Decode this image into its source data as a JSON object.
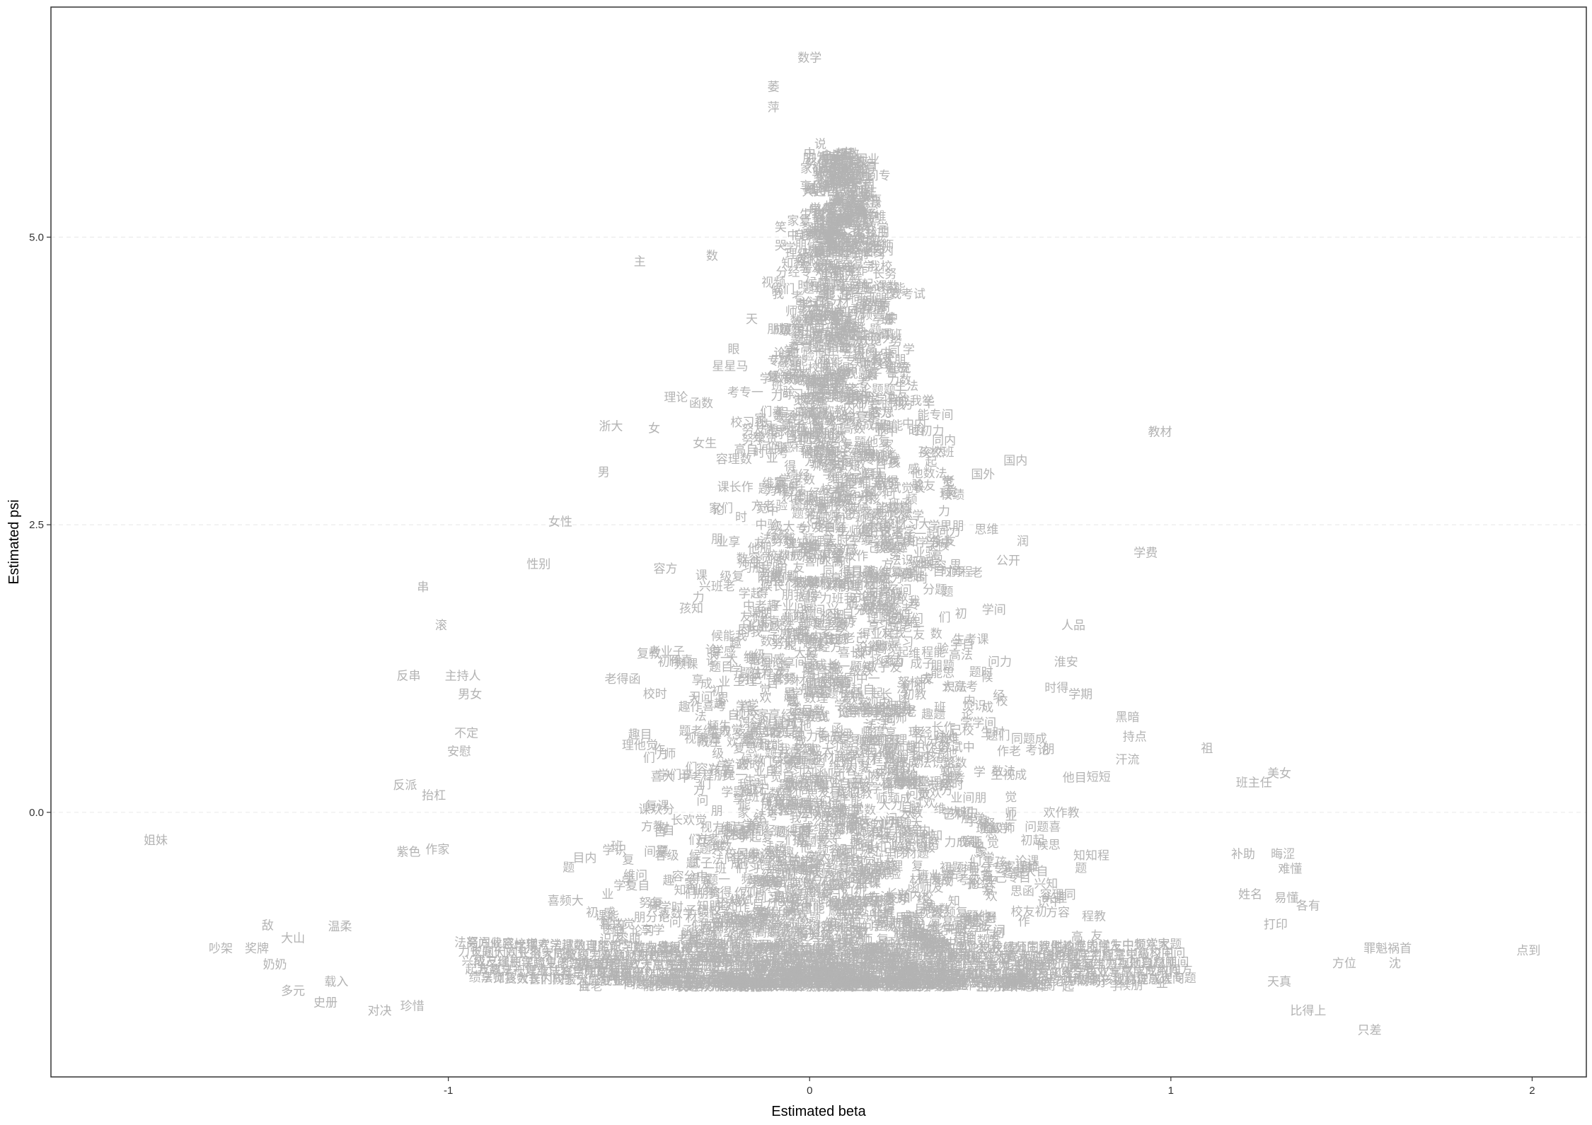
{
  "chart_data": {
    "type": "scatter",
    "title": "",
    "xlabel": "Estimated beta",
    "ylabel": "Estimated psi",
    "xlim": [
      -2.1,
      2.15
    ],
    "ylim": [
      -2.3,
      7.0
    ],
    "x_ticks": [
      -1,
      0,
      1,
      2
    ],
    "x_tick_labels": [
      "-1",
      "0",
      "1",
      "2"
    ],
    "y_ticks": [
      0,
      2.5,
      5
    ],
    "y_tick_labels": [
      "0.0",
      "2.5",
      "5.0"
    ],
    "grid": "horizontal dashed",
    "legend": "none",
    "point_style": "word labels (gray text)",
    "point_color": "#b3b3b3",
    "labeled_points": [
      {
        "label": "数学",
        "x": 0.0,
        "y": 6.55
      },
      {
        "label": "萎",
        "x": -0.1,
        "y": 6.3
      },
      {
        "label": "萍",
        "x": -0.1,
        "y": 6.12
      },
      {
        "label": "说",
        "x": 0.03,
        "y": 5.8
      },
      {
        "label": "中",
        "x": 0.0,
        "y": 5.72
      },
      {
        "label": "一个",
        "x": 0.08,
        "y": 5.42
      },
      {
        "label": "笑",
        "x": -0.08,
        "y": 5.08
      },
      {
        "label": "天才",
        "x": 0.05,
        "y": 4.9
      },
      {
        "label": "哭",
        "x": -0.08,
        "y": 4.92
      },
      {
        "label": "老师",
        "x": 0.2,
        "y": 4.92
      },
      {
        "label": "主",
        "x": -0.47,
        "y": 4.78
      },
      {
        "label": "数",
        "x": -0.27,
        "y": 4.83
      },
      {
        "label": "视频",
        "x": -0.1,
        "y": 4.6
      },
      {
        "label": "天",
        "x": -0.16,
        "y": 4.28
      },
      {
        "label": "眼",
        "x": -0.21,
        "y": 4.02
      },
      {
        "label": "星星马",
        "x": -0.22,
        "y": 3.87
      },
      {
        "label": "理论",
        "x": -0.37,
        "y": 3.6
      },
      {
        "label": "函数",
        "x": -0.3,
        "y": 3.55
      },
      {
        "label": "浙大",
        "x": -0.55,
        "y": 3.35
      },
      {
        "label": "女",
        "x": -0.43,
        "y": 3.33
      },
      {
        "label": "女生",
        "x": -0.29,
        "y": 3.2
      },
      {
        "label": "男",
        "x": -0.57,
        "y": 2.95
      },
      {
        "label": "读",
        "x": 0.22,
        "y": 3.6
      },
      {
        "label": "华",
        "x": 0.33,
        "y": 3.55
      },
      {
        "label": "突然",
        "x": 0.34,
        "y": 3.12
      },
      {
        "label": "国内",
        "x": 0.57,
        "y": 3.05
      },
      {
        "label": "国外",
        "x": 0.48,
        "y": 2.93
      },
      {
        "label": "教材",
        "x": 0.97,
        "y": 3.3
      },
      {
        "label": "女性",
        "x": -0.69,
        "y": 2.52
      },
      {
        "label": "思维",
        "x": 0.49,
        "y": 2.45
      },
      {
        "label": "润",
        "x": 0.59,
        "y": 2.35
      },
      {
        "label": "学费",
        "x": 0.93,
        "y": 2.25
      },
      {
        "label": "公开",
        "x": 0.55,
        "y": 2.18
      },
      {
        "label": "性别",
        "x": -0.75,
        "y": 2.15
      },
      {
        "label": "串",
        "x": -1.07,
        "y": 1.95
      },
      {
        "label": "滚",
        "x": -1.02,
        "y": 1.62
      },
      {
        "label": "人品",
        "x": 0.73,
        "y": 1.62
      },
      {
        "label": "反串",
        "x": -1.11,
        "y": 1.18
      },
      {
        "label": "主持人",
        "x": -0.96,
        "y": 1.18
      },
      {
        "label": "男女",
        "x": -0.94,
        "y": 1.02
      },
      {
        "label": "淮安",
        "x": 0.71,
        "y": 1.3
      },
      {
        "label": "学期",
        "x": 0.75,
        "y": 1.02
      },
      {
        "label": "黑暗",
        "x": 0.88,
        "y": 0.82
      },
      {
        "label": "持点",
        "x": 0.9,
        "y": 0.65
      },
      {
        "label": "汗流",
        "x": 0.88,
        "y": 0.45
      },
      {
        "label": "短短",
        "x": 0.8,
        "y": 0.3
      },
      {
        "label": "祖",
        "x": 1.1,
        "y": 0.55
      },
      {
        "label": "美女",
        "x": 1.3,
        "y": 0.33
      },
      {
        "label": "班主任",
        "x": 1.23,
        "y": 0.25
      },
      {
        "label": "不定",
        "x": -0.95,
        "y": 0.68
      },
      {
        "label": "安慰",
        "x": -0.97,
        "y": 0.52
      },
      {
        "label": "反派",
        "x": -1.12,
        "y": 0.23
      },
      {
        "label": "抬杠",
        "x": -1.04,
        "y": 0.14
      },
      {
        "label": "紫色",
        "x": -1.11,
        "y": -0.35
      },
      {
        "label": "作家",
        "x": -1.03,
        "y": -0.33
      },
      {
        "label": "姐妹",
        "x": -1.81,
        "y": -0.25
      },
      {
        "label": "补助",
        "x": 1.2,
        "y": -0.37
      },
      {
        "label": "晦涩",
        "x": 1.31,
        "y": -0.37
      },
      {
        "label": "难懂",
        "x": 1.33,
        "y": -0.5
      },
      {
        "label": "易懂",
        "x": 1.32,
        "y": -0.75
      },
      {
        "label": "姓名",
        "x": 1.22,
        "y": -0.72
      },
      {
        "label": "各有",
        "x": 1.38,
        "y": -0.82
      },
      {
        "label": "打印",
        "x": 1.29,
        "y": -0.98
      },
      {
        "label": "敌",
        "x": -1.5,
        "y": -0.99
      },
      {
        "label": "大山",
        "x": -1.43,
        "y": -1.1
      },
      {
        "label": "温柔",
        "x": -1.3,
        "y": -1.0
      },
      {
        "label": "吵架",
        "x": -1.63,
        "y": -1.19
      },
      {
        "label": "奖牌",
        "x": -1.53,
        "y": -1.19
      },
      {
        "label": "奶奶",
        "x": -1.48,
        "y": -1.33
      },
      {
        "label": "载入",
        "x": -1.31,
        "y": -1.48
      },
      {
        "label": "多元",
        "x": -1.43,
        "y": -1.56
      },
      {
        "label": "史册",
        "x": -1.34,
        "y": -1.66
      },
      {
        "label": "对决",
        "x": -1.19,
        "y": -1.73
      },
      {
        "label": "珍惜",
        "x": -1.1,
        "y": -1.69
      },
      {
        "label": "天真",
        "x": 1.3,
        "y": -1.48
      },
      {
        "label": "比得上",
        "x": 1.38,
        "y": -1.73
      },
      {
        "label": "方位",
        "x": 1.48,
        "y": -1.32
      },
      {
        "label": "沈",
        "x": 1.62,
        "y": -1.32
      },
      {
        "label": "罪魁祸首",
        "x": 1.6,
        "y": -1.19
      },
      {
        "label": "点到",
        "x": 1.99,
        "y": -1.21
      },
      {
        "label": "只差",
        "x": 1.55,
        "y": -1.9
      }
    ],
    "dense_cloud": {
      "description": "several thousand overlapping gray word labels forming a cone: centered near x=0, y from about -1.5 upward to about 6; spread widens at low psi (roughly x in [-1, 1] near y=-1.2)",
      "approx_n_points": 6000,
      "center_x": 0.0,
      "min_y": -1.55,
      "max_y": 6.2
    }
  }
}
